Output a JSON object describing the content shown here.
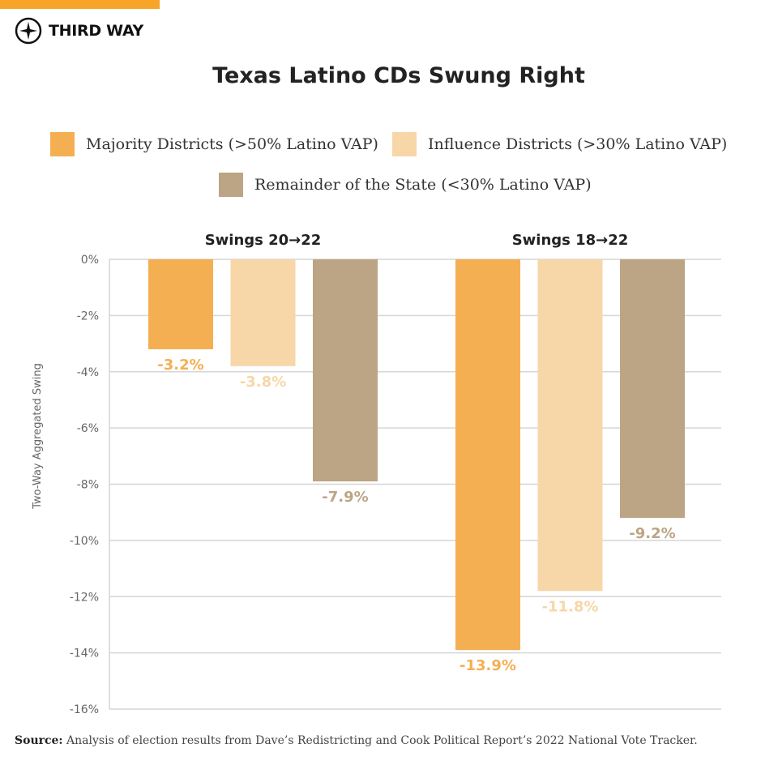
{
  "brand": {
    "name": "THIRD WAY",
    "accent": "#F7A428"
  },
  "chart_data": {
    "type": "bar",
    "title": "Texas Latino CDs Swung Right",
    "ylabel": "Two-Way Aggregated Swing",
    "ylim": [
      -16,
      0
    ],
    "yticks": [
      "0%",
      "-2%",
      "-4%",
      "-6%",
      "-8%",
      "-10%",
      "-12%",
      "-14%",
      "-16%"
    ],
    "ytick_values": [
      0,
      -2,
      -4,
      -6,
      -8,
      -10,
      -12,
      -14,
      -16
    ],
    "grid": true,
    "legend_placement": "top",
    "categories": [
      "Swings 20→22",
      "Swings 18→22"
    ],
    "series": [
      {
        "name": "Majority Districts (>50% Latino VAP)",
        "color": "#F4AF53",
        "values": [
          -3.2,
          -13.9
        ],
        "labels": [
          "-3.2%",
          "-13.9%"
        ]
      },
      {
        "name": "Influence Districts (>30% Latino VAP)",
        "color": "#F7D6A8",
        "values": [
          -3.8,
          -11.8
        ],
        "labels": [
          "-3.8%",
          "-11.8%"
        ]
      },
      {
        "name": "Remainder of the State (<30% Latino VAP)",
        "color": "#BBA584",
        "values": [
          -7.9,
          -9.2
        ],
        "labels": [
          "-7.9%",
          "-9.2%"
        ]
      }
    ]
  },
  "source": {
    "label": "Source:",
    "text": " Analysis of election results from Dave’s Redistricting and Cook Political Report’s 2022 National Vote Tracker."
  }
}
